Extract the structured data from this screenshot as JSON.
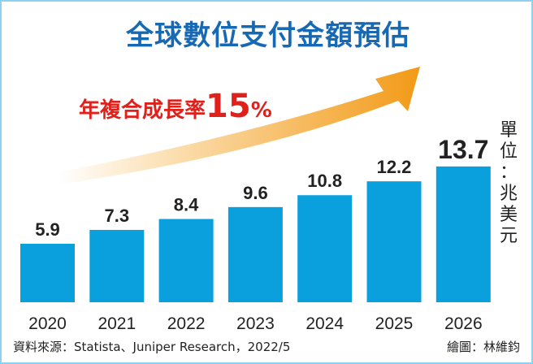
{
  "chart_data": {
    "type": "bar",
    "title": "全球數位支付金額預估",
    "subtitle_prefix": "年複合成長率",
    "subtitle_value": "15",
    "subtitle_unit": "%",
    "categories": [
      "2020",
      "2021",
      "2022",
      "2023",
      "2024",
      "2025",
      "2026"
    ],
    "values": [
      5.9,
      7.3,
      8.4,
      9.6,
      10.8,
      12.2,
      13.7
    ],
    "value_labels": [
      "5.9",
      "7.3",
      "8.4",
      "9.6",
      "10.8",
      "12.2",
      "13.7"
    ],
    "unit_label": [
      "單",
      "位",
      "：",
      "兆",
      "美",
      "元"
    ],
    "ylim": [
      0,
      14
    ],
    "grid": false,
    "colors": {
      "bar": "#0aa0de",
      "title": "#1769b3",
      "subtitle": "#e0201b",
      "arrow": "#f29a16"
    }
  },
  "footer": {
    "source": "資料來源：Statista、Juniper Research，2022/5",
    "credit": "繪圖：林維鈞"
  }
}
